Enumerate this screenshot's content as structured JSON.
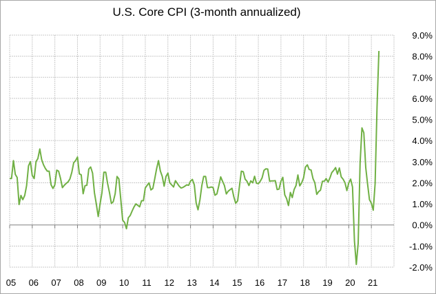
{
  "chart_data": {
    "type": "line",
    "title": "U.S. Core CPI (3-month annualized)",
    "xlabel": "",
    "ylabel": "",
    "x_start": "2005-01",
    "frequency": "monthly",
    "xlim_years": [
      2005,
      2022
    ],
    "ylim": [
      -2.0,
      9.0
    ],
    "y_ticks": [
      -2,
      -1,
      0,
      1,
      2,
      3,
      4,
      5,
      6,
      7,
      8,
      9
    ],
    "y_tick_labels": [
      "-2.0%",
      "-1.0%",
      "0.0%",
      "1.0%",
      "2.0%",
      "3.0%",
      "4.0%",
      "5.0%",
      "6.0%",
      "7.0%",
      "8.0%",
      "9.0%"
    ],
    "x_tick_labels": [
      "05",
      "06",
      "07",
      "08",
      "09",
      "10",
      "11",
      "12",
      "13",
      "14",
      "15",
      "16",
      "17",
      "18",
      "19",
      "20",
      "21"
    ],
    "grid": true,
    "legend": "none",
    "series": [
      {
        "name": "U.S. Core CPI (3-month annualized)",
        "color": "#70b044",
        "values": [
          2.2,
          2.2,
          3.05,
          2.4,
          2.25,
          0.97,
          1.4,
          1.2,
          1.4,
          1.86,
          2.8,
          3.0,
          2.35,
          2.2,
          3.0,
          3.15,
          3.6,
          3.1,
          2.85,
          2.67,
          2.55,
          2.55,
          1.9,
          1.73,
          1.9,
          2.6,
          2.55,
          2.2,
          1.77,
          1.88,
          1.97,
          2.04,
          2.18,
          2.5,
          2.95,
          3.05,
          3.22,
          2.42,
          2.38,
          1.48,
          1.86,
          1.88,
          2.65,
          2.75,
          2.46,
          1.53,
          1.0,
          0.4,
          1.0,
          1.53,
          2.5,
          2.5,
          1.97,
          1.53,
          1.02,
          1.1,
          1.48,
          2.3,
          2.18,
          1.2,
          0.23,
          0.12,
          -0.18,
          0.34,
          0.45,
          0.66,
          0.85,
          1.0,
          0.93,
          0.86,
          1.15,
          1.15,
          1.75,
          1.88,
          2.0,
          1.66,
          1.73,
          2.18,
          2.67,
          3.05,
          2.56,
          2.3,
          1.84,
          2.3,
          2.46,
          2.0,
          1.9,
          1.8,
          2.1,
          1.97,
          1.84,
          1.75,
          1.78,
          1.84,
          1.9,
          1.88,
          2.08,
          2.16,
          1.9,
          1.04,
          0.72,
          1.2,
          1.86,
          2.3,
          2.3,
          1.77,
          1.77,
          1.8,
          1.77,
          1.41,
          1.47,
          1.85,
          2.28,
          2.07,
          1.87,
          1.47,
          1.6,
          1.67,
          1.74,
          1.33,
          1.03,
          1.14,
          1.85,
          2.55,
          2.52,
          2.17,
          2.07,
          1.87,
          2.09,
          2.0,
          2.31,
          1.98,
          1.96,
          2.07,
          2.23,
          2.59,
          2.66,
          2.65,
          2.07,
          2.09,
          2.09,
          2.1,
          1.68,
          1.7,
          2.07,
          2.26,
          1.43,
          1.25,
          0.92,
          1.54,
          1.3,
          1.68,
          1.87,
          2.37,
          1.85,
          2.0,
          2.23,
          2.74,
          2.85,
          2.63,
          2.61,
          2.2,
          2.0,
          1.45,
          1.58,
          1.65,
          2.07,
          2.07,
          2.2,
          2.03,
          2.23,
          2.48,
          2.59,
          2.72,
          2.41,
          2.7,
          2.28,
          2.17,
          2.0,
          1.63,
          2.0,
          2.17,
          1.8,
          -0.76,
          -1.87,
          -0.87,
          2.93,
          4.6,
          4.37,
          2.72,
          1.93,
          1.2,
          1.03,
          0.7,
          1.96,
          5.6,
          8.25
        ]
      }
    ]
  }
}
